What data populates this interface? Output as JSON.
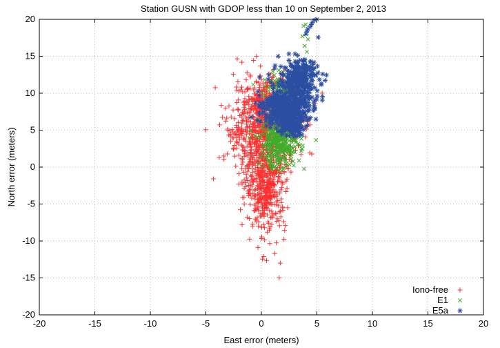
{
  "chart_data": {
    "type": "scatter",
    "title": "Station GUSN with GDOP less than 10 on September 2, 2013",
    "xlabel": "East error (meters)",
    "ylabel": "North error (meters)",
    "xlim": [
      -20,
      20
    ],
    "ylim": [
      -20,
      20
    ],
    "xticks": [
      "-20",
      "-15",
      "-10",
      "-5",
      "0",
      "5",
      "10",
      "15",
      "20"
    ],
    "yticks": [
      "-20",
      "-15",
      "-10",
      "-5",
      "0",
      "5",
      "10",
      "15",
      "20"
    ],
    "grid": true,
    "legend_position": "bottom-right",
    "series": [
      {
        "name": "Iono-free",
        "marker": "plus",
        "color": "#ff3030",
        "clusters": [
          {
            "cx": 0.2,
            "cy": 5.5,
            "sx": 1.6,
            "sy": 3.2,
            "n": 700
          },
          {
            "cx": 0.4,
            "cy": -2.5,
            "sx": 0.9,
            "sy": 3.0,
            "n": 450
          },
          {
            "cx": 1.2,
            "cy": 9.5,
            "sx": 1.2,
            "sy": 1.5,
            "n": 150
          }
        ],
        "points": [
          [
            1.6,
            -15.0
          ],
          [
            1.7,
            -13.0
          ],
          [
            0.2,
            -12.1
          ],
          [
            1.2,
            -11.7
          ],
          [
            -1.1,
            3.5
          ],
          [
            3.8,
            7.5
          ],
          [
            -2.8,
            4.2
          ]
        ]
      },
      {
        "name": "E1",
        "marker": "x",
        "color": "#3dae2b",
        "clusters": [
          {
            "cx": 1.7,
            "cy": 3.5,
            "sx": 0.9,
            "sy": 1.8,
            "n": 360
          },
          {
            "cx": 2.0,
            "cy": 9.5,
            "sx": 0.9,
            "sy": 1.4,
            "n": 160
          }
        ],
        "points": [
          [
            1.0,
            0.2
          ],
          [
            0.9,
            -0.3
          ],
          [
            3.6,
            13.4
          ],
          [
            3.9,
            14.4
          ],
          [
            4.1,
            15.6
          ],
          [
            3.9,
            16.4
          ],
          [
            4.2,
            17.3
          ],
          [
            3.7,
            17.7
          ],
          [
            4.1,
            18.1
          ],
          [
            3.8,
            19.1
          ],
          [
            4.0,
            19.3
          ]
        ]
      },
      {
        "name": "E5a",
        "marker": "star",
        "color": "#2c4fa3",
        "clusters": [
          {
            "cx": 2.2,
            "cy": 8.0,
            "sx": 1.0,
            "sy": 1.3,
            "n": 560
          },
          {
            "cx": 3.4,
            "cy": 12.0,
            "sx": 0.9,
            "sy": 1.3,
            "n": 280
          },
          {
            "cx": 2.8,
            "cy": 5.5,
            "sx": 0.5,
            "sy": 0.6,
            "n": 80
          }
        ],
        "points": [
          [
            4.0,
            18.0
          ],
          [
            4.1,
            18.4
          ],
          [
            4.2,
            18.7
          ],
          [
            4.4,
            19.0
          ],
          [
            4.5,
            19.3
          ],
          [
            4.6,
            19.6
          ],
          [
            4.8,
            19.9
          ],
          [
            5.0,
            20.0
          ],
          [
            2.4,
            6.0
          ],
          [
            3.2,
            5.7
          ],
          [
            -0.3,
            10.2
          ],
          [
            3.3,
            14.0
          ]
        ]
      }
    ]
  }
}
